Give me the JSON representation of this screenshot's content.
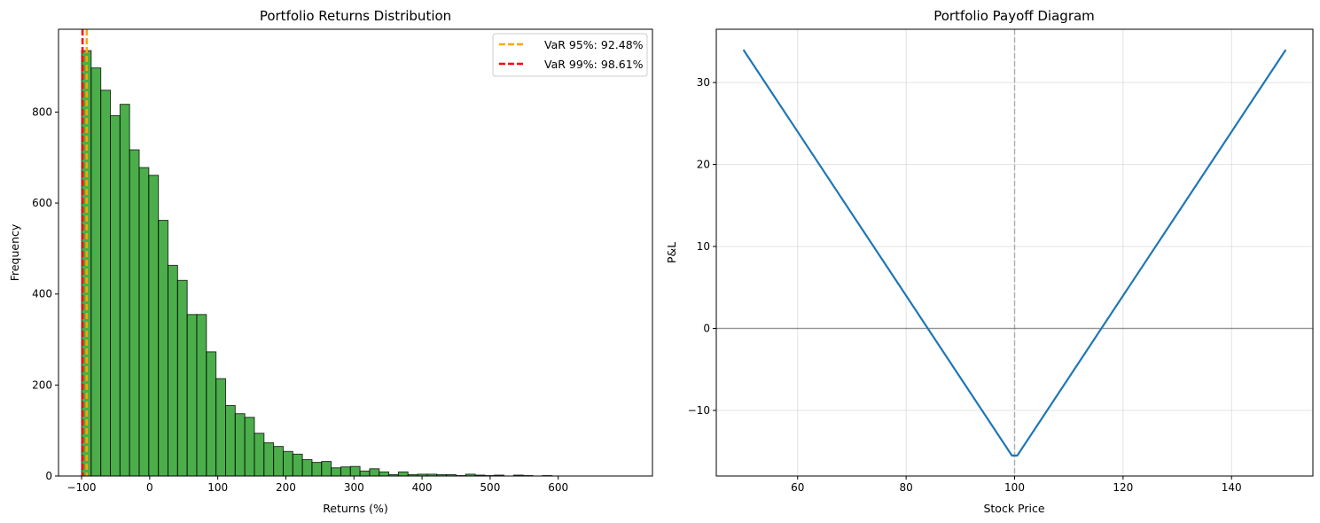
{
  "chart_data": [
    {
      "type": "bar",
      "title": "Portfolio Returns Distribution",
      "xlabel": "Returns (%)",
      "ylabel": "Frequency",
      "xlim": [
        -133.9,
        738.4
      ],
      "ylim": [
        0,
        982
      ],
      "xticks": [
        -100,
        0,
        100,
        200,
        300,
        400,
        500,
        600
      ],
      "yticks": [
        0,
        200,
        400,
        600,
        800
      ],
      "bin_start": -100,
      "bin_width": 14.1,
      "values": [
        935,
        897,
        848,
        792,
        817,
        717,
        678,
        661,
        562,
        463,
        430,
        355,
        355,
        273,
        214,
        155,
        137,
        129,
        94,
        73,
        65,
        54,
        48,
        36,
        30,
        32,
        18,
        20,
        21,
        11,
        16,
        9,
        3,
        9,
        3,
        4,
        4,
        3,
        3,
        1,
        4,
        2,
        1,
        2,
        0,
        2,
        1,
        0,
        1,
        0
      ],
      "bar_color": "#2ca02c",
      "edge_color": "#000000",
      "vlines": [
        {
          "x": -92.48,
          "label": "VaR 95%: 92.48%",
          "color": "#ffa500"
        },
        {
          "x": -98.61,
          "label": "VaR 99%: 98.61%",
          "color": "#ff0000"
        }
      ],
      "legend": "top-right",
      "grid": false
    },
    {
      "type": "line",
      "title": "Portfolio Payoff Diagram",
      "xlabel": "Stock Price",
      "ylabel": "P&L",
      "xlim": [
        45,
        155
      ],
      "ylim": [
        -18,
        36.5
      ],
      "xticks": [
        60,
        80,
        100,
        120,
        140
      ],
      "yticks": [
        -10,
        0,
        10,
        20,
        30
      ],
      "x": [
        50,
        99.5,
        100.5,
        150
      ],
      "y": [
        34,
        -15.5,
        -15.5,
        34
      ],
      "line_color": "#1f77b4",
      "hline": 0,
      "vline": 100,
      "grid": true
    }
  ]
}
